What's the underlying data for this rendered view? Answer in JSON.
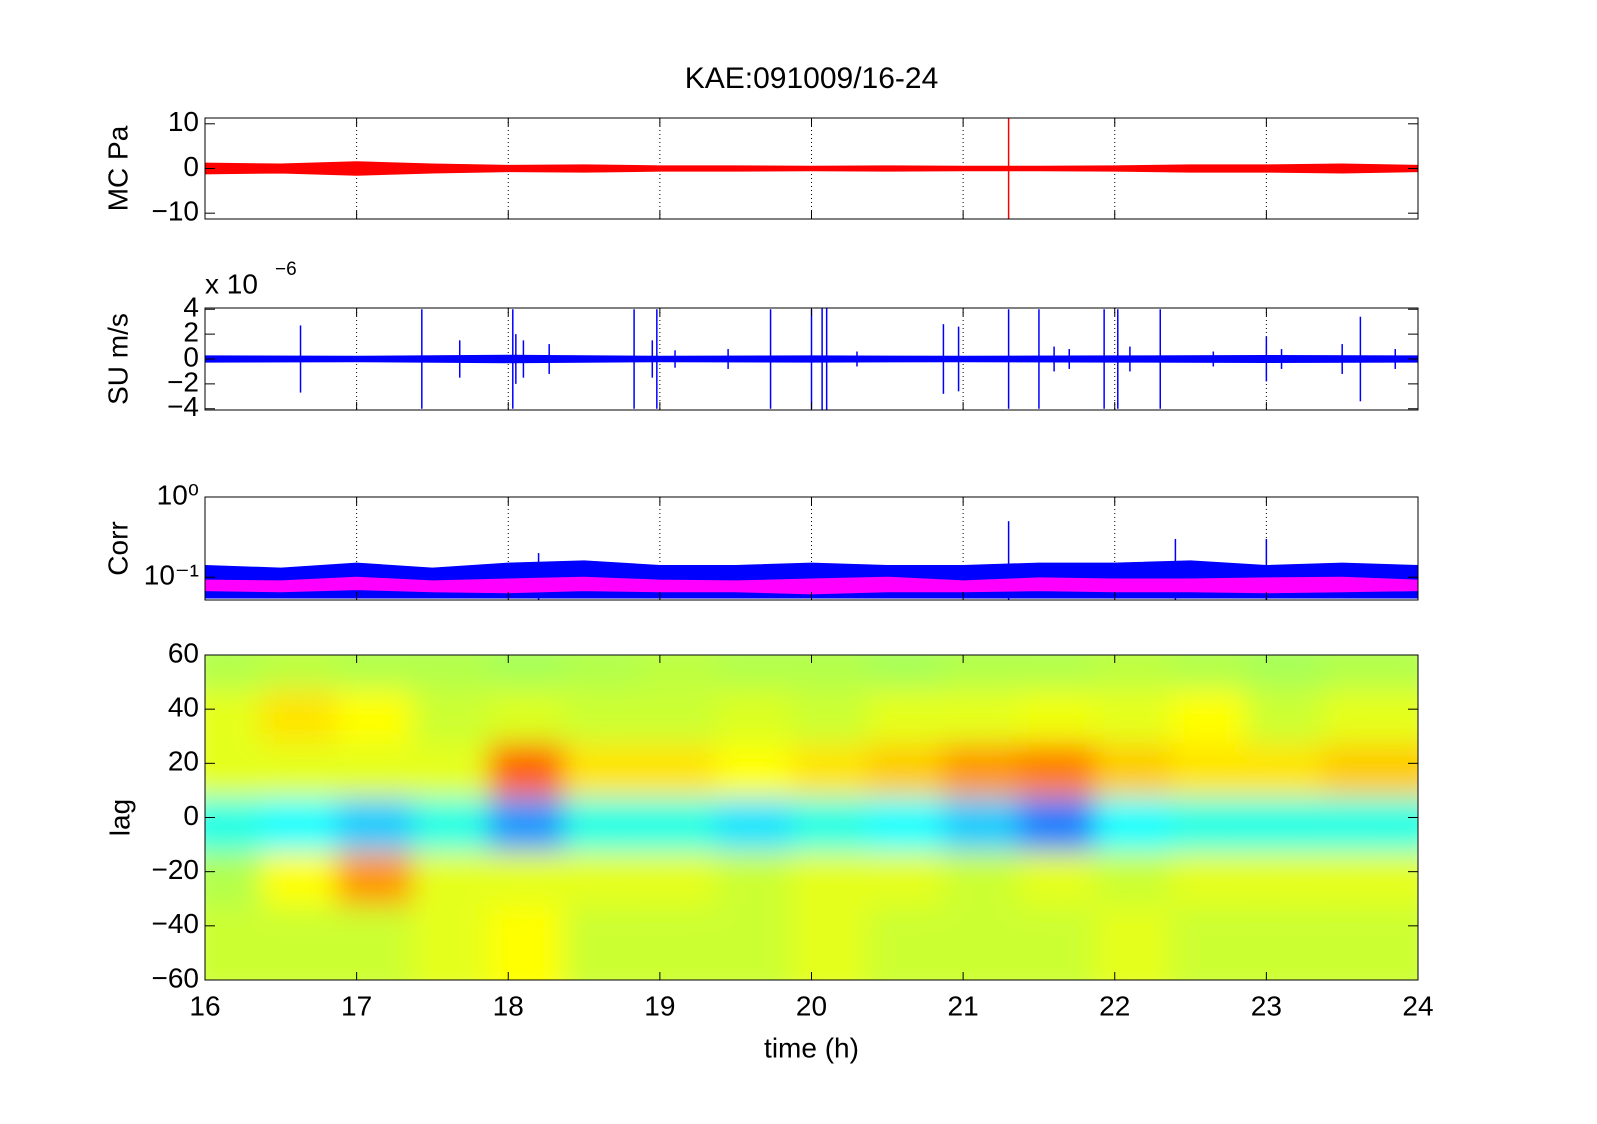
{
  "chart_data": [
    {
      "type": "band",
      "title": "KAE:091009/16-24",
      "ylabel": "MC Pa",
      "xlim": [
        16,
        24
      ],
      "xticks": [
        16,
        17,
        18,
        19,
        20,
        21,
        22,
        23,
        24
      ],
      "show_xticklabels": false,
      "grid_x": true,
      "ylim": [
        -11.3,
        11.3
      ],
      "yticks": [
        {
          "value": -10,
          "label": "−10"
        },
        0,
        10
      ],
      "yscale": "linear",
      "series": [
        {
          "color": "#ff0000",
          "style": "band",
          "x": [
            16,
            16.5,
            17,
            17.5,
            18,
            18.5,
            19,
            19.5,
            20,
            20.5,
            21,
            21.5,
            22,
            22.5,
            23,
            23.5,
            24
          ],
          "values": [
            1.2,
            1.0,
            1.5,
            1.0,
            0.7,
            0.8,
            0.6,
            0.6,
            0.5,
            0.6,
            0.5,
            0.5,
            0.6,
            0.8,
            0.8,
            1.0,
            0.7
          ]
        },
        {
          "color": "#ff0000",
          "style": "spikes",
          "x": [
            21.3
          ],
          "values": [
            11.3
          ]
        }
      ]
    },
    {
      "type": "band",
      "ylabel": "SU m/s",
      "scale_base": "x 10",
      "scale_exponent": "−6",
      "xlim": [
        16,
        24
      ],
      "xticks": [
        16,
        17,
        18,
        19,
        20,
        21,
        22,
        23,
        24
      ],
      "show_xticklabels": false,
      "grid_x": true,
      "ylim": [
        -4.1,
        4.1
      ],
      "yticks": [
        {
          "value": -4,
          "label": "−4"
        },
        {
          "value": -2,
          "label": "−2"
        },
        0,
        2,
        4
      ],
      "yscale": "linear",
      "series": [
        {
          "color": "#0000ff",
          "style": "band",
          "x": [
            16,
            17,
            18,
            19,
            20,
            21,
            22,
            23,
            24
          ],
          "values": [
            0.25,
            0.22,
            0.3,
            0.22,
            0.25,
            0.22,
            0.25,
            0.28,
            0.25
          ]
        },
        {
          "color": "#0000ff",
          "style": "spikes",
          "x": [
            16.63,
            17.43,
            17.68,
            18.03,
            18.05,
            18.1,
            18.27,
            18.83,
            18.95,
            18.98,
            19.1,
            19.45,
            19.73,
            20.0,
            20.07,
            20.1,
            20.3,
            20.87,
            20.97,
            21.3,
            21.5,
            21.6,
            21.7,
            21.93,
            22.02,
            22.1,
            22.3,
            22.65,
            23.0,
            23.1,
            23.5,
            23.62,
            23.85
          ],
          "values": [
            2.7,
            4,
            1.5,
            4,
            2,
            1.5,
            1.2,
            4,
            1.5,
            4,
            0.7,
            0.8,
            4,
            4,
            4.2,
            4.5,
            0.6,
            2.8,
            2.6,
            4,
            4,
            1,
            0.8,
            4,
            4,
            1,
            4,
            0.6,
            1.8,
            0.8,
            1.2,
            3.4,
            0.8
          ]
        }
      ]
    },
    {
      "type": "band",
      "ylabel": "Corr",
      "xlim": [
        16,
        24
      ],
      "xticks": [
        16,
        17,
        18,
        19,
        20,
        21,
        22,
        23,
        24
      ],
      "show_xticklabels": false,
      "grid_x": true,
      "ylim": [
        0.052,
        1
      ],
      "yticks": [
        {
          "value": 0.1,
          "label": "10⁻¹"
        },
        {
          "value": 1,
          "label": "10⁰"
        }
      ],
      "yscale": "log",
      "series": [
        {
          "color": "#0000ff",
          "style": "range",
          "x": [
            16,
            16.5,
            17,
            17.5,
            18,
            18.5,
            19,
            19.5,
            20,
            20.5,
            21,
            21.5,
            22,
            22.5,
            23,
            23.5,
            24
          ],
          "values": [
            0.14,
            0.13,
            0.15,
            0.13,
            0.15,
            0.16,
            0.14,
            0.14,
            0.15,
            0.14,
            0.14,
            0.15,
            0.15,
            0.16,
            0.14,
            0.15,
            0.14
          ],
          "low": [
            0.055,
            0.055,
            0.055,
            0.055,
            0.055,
            0.055,
            0.055,
            0.055,
            0.055,
            0.055,
            0.055,
            0.055,
            0.055,
            0.055,
            0.055,
            0.055,
            0.055
          ]
        },
        {
          "color": "#0000ff",
          "style": "spikes",
          "x": [
            18.2,
            21.3,
            22.4,
            23.0
          ],
          "values": [
            0.2,
            0.5,
            0.3,
            0.3
          ]
        },
        {
          "color": "#ff00ff",
          "style": "range",
          "x": [
            16,
            16.5,
            17,
            17.5,
            18,
            18.5,
            19,
            19.5,
            20,
            20.5,
            21,
            21.5,
            22,
            22.5,
            23,
            23.5,
            24
          ],
          "values": [
            0.092,
            0.09,
            0.1,
            0.09,
            0.095,
            0.1,
            0.092,
            0.09,
            0.095,
            0.1,
            0.09,
            0.098,
            0.095,
            0.095,
            0.098,
            0.1,
            0.092
          ],
          "low": [
            0.068,
            0.066,
            0.07,
            0.066,
            0.064,
            0.068,
            0.066,
            0.066,
            0.062,
            0.066,
            0.066,
            0.068,
            0.066,
            0.066,
            0.064,
            0.066,
            0.068
          ]
        }
      ]
    },
    {
      "type": "heatmap",
      "ylabel": "lag",
      "xlabel": "time (h)",
      "xlim": [
        16,
        24
      ],
      "xticks": [
        16,
        17,
        18,
        19,
        20,
        21,
        22,
        23,
        24
      ],
      "show_xticklabels": true,
      "grid_x": false,
      "ylim": [
        -60,
        60
      ],
      "yticks": [
        {
          "value": -60,
          "label": "−60"
        },
        {
          "value": -40,
          "label": "−40"
        },
        {
          "value": -20,
          "label": "−20"
        },
        0,
        20,
        40,
        60
      ],
      "yscale": "linear",
      "clim": [
        -1,
        1
      ],
      "colormap": "jet",
      "x": [
        16.25,
        16.75,
        17.25,
        17.75,
        18.25,
        18.75,
        19.25,
        19.75,
        20.25,
        20.75,
        21.25,
        21.75,
        22.25,
        22.75,
        23.25,
        23.75
      ],
      "y": [
        50,
        30,
        10,
        -10,
        -30,
        -50
      ],
      "values": [
        [
          0.1,
          0.12,
          0.1,
          0.1,
          0.08,
          0.1,
          0.12,
          0.1,
          0.1,
          0.08,
          0.1,
          0.1,
          0.12,
          0.1,
          0.08,
          0.1
        ],
        [
          0.2,
          0.3,
          0.25,
          0.15,
          0.18,
          0.15,
          0.15,
          0.18,
          0.15,
          0.2,
          0.2,
          0.22,
          0.2,
          0.25,
          0.15,
          0.2
        ],
        [
          0.2,
          0.2,
          0.2,
          0.2,
          0.55,
          0.3,
          0.3,
          0.25,
          0.3,
          0.35,
          0.45,
          0.5,
          0.35,
          0.3,
          0.3,
          0.35
        ],
        [
          -0.2,
          -0.25,
          -0.35,
          -0.2,
          -0.45,
          -0.2,
          -0.2,
          -0.3,
          -0.2,
          -0.25,
          -0.35,
          -0.5,
          -0.25,
          -0.2,
          -0.2,
          -0.2
        ],
        [
          0.1,
          0.25,
          0.45,
          0.2,
          0.2,
          0.2,
          0.2,
          0.15,
          0.2,
          0.2,
          0.15,
          0.2,
          0.15,
          0.2,
          0.2,
          0.2
        ],
        [
          0.15,
          0.15,
          0.15,
          0.2,
          0.25,
          0.15,
          0.15,
          0.15,
          0.2,
          0.15,
          0.15,
          0.15,
          0.2,
          0.15,
          0.15,
          0.15
        ]
      ]
    }
  ]
}
